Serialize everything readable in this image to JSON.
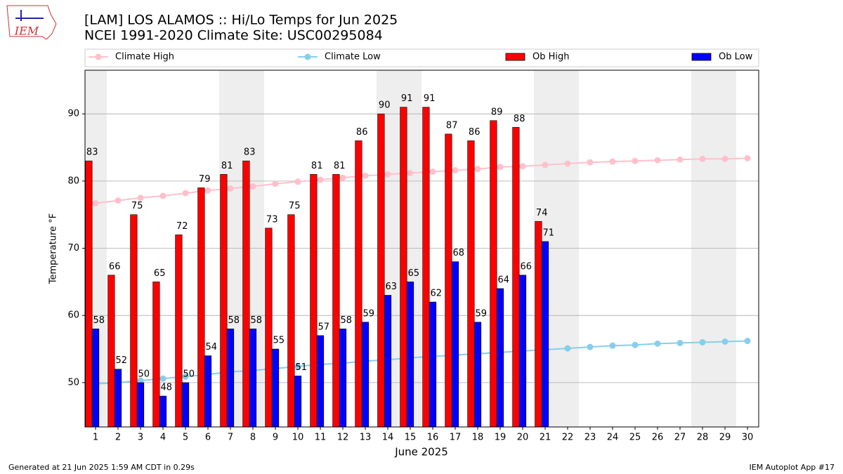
{
  "chart_data": {
    "type": "bar",
    "title": "[LAM] LOS ALAMOS :: Hi/Lo Temps for Jun 2025",
    "subtitle": "NCEI 1991-2020 Climate Site: USC00295084",
    "xlabel": "June 2025",
    "ylabel": "Temperature °F",
    "logo_text": "IEM",
    "footer_left": "Generated at 21 Jun 2025 1:59 AM CDT in 0.29s",
    "footer_right": "IEM Autoplot App #17",
    "categories": [
      "1",
      "2",
      "3",
      "4",
      "5",
      "6",
      "7",
      "8",
      "9",
      "10",
      "11",
      "12",
      "13",
      "14",
      "15",
      "16",
      "17",
      "18",
      "19",
      "20",
      "21",
      "22",
      "23",
      "24",
      "25",
      "26",
      "27",
      "28",
      "29",
      "30"
    ],
    "weekend": [
      "1",
      "7",
      "8",
      "14",
      "15",
      "21",
      "22",
      "28",
      "29"
    ],
    "series": [
      {
        "name": "Climate High",
        "kind": "line",
        "color": "#ffc0cb",
        "values": [
          76.7,
          77.1,
          77.5,
          77.8,
          78.2,
          78.6,
          78.9,
          79.2,
          79.6,
          79.9,
          80.2,
          80.5,
          80.8,
          81.0,
          81.2,
          81.4,
          81.6,
          81.8,
          82.1,
          82.2,
          82.4,
          82.6,
          82.8,
          82.9,
          83.0,
          83.1,
          83.2,
          83.3,
          83.3,
          83.4
        ]
      },
      {
        "name": "Climate Low",
        "kind": "line",
        "color": "#87ceeb",
        "values": [
          49.8,
          50.0,
          50.3,
          50.6,
          50.9,
          51.2,
          51.6,
          51.8,
          52.1,
          52.4,
          52.7,
          52.9,
          53.2,
          53.4,
          53.7,
          53.9,
          54.1,
          54.3,
          54.5,
          54.7,
          54.9,
          55.1,
          55.3,
          55.5,
          55.6,
          55.8,
          55.9,
          56.0,
          56.1,
          56.2
        ]
      },
      {
        "name": "Ob High",
        "kind": "bar",
        "color": "#ff0000",
        "values": [
          83,
          66,
          75,
          65,
          72,
          79,
          81,
          83,
          73,
          75,
          81,
          81,
          86,
          90,
          91,
          91,
          87,
          86,
          89,
          88,
          74,
          null,
          null,
          null,
          null,
          null,
          null,
          null,
          null,
          null
        ]
      },
      {
        "name": "Ob Low",
        "kind": "bar",
        "color": "#0000ff",
        "values": [
          58,
          52,
          50,
          48,
          50,
          54,
          58,
          58,
          55,
          51,
          57,
          58,
          59,
          63,
          65,
          62,
          68,
          59,
          64,
          66,
          71,
          null,
          null,
          null,
          null,
          null,
          null,
          null,
          null,
          null
        ]
      }
    ],
    "ylim": [
      43.4,
      96.5
    ],
    "yticks": [
      50,
      60,
      70,
      80,
      90
    ],
    "grid": true
  }
}
